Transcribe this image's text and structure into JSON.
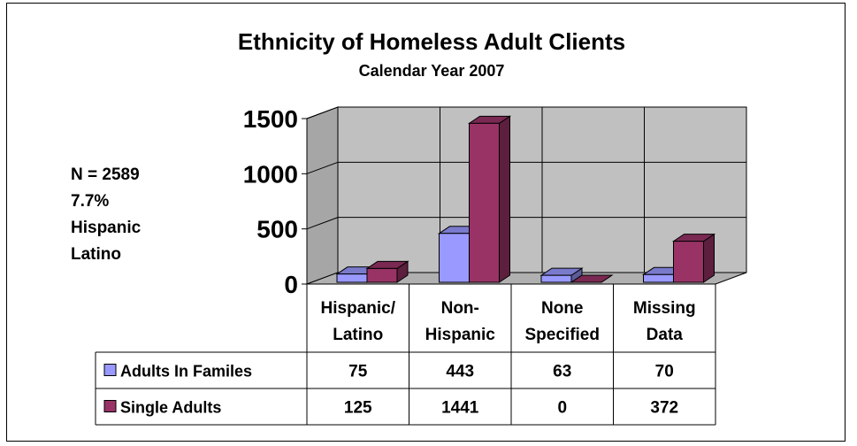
{
  "chart_data": {
    "type": "bar",
    "title": "Ethnicity of Homeless Adult Clients",
    "subtitle": "Calendar Year 2007",
    "categories": [
      [
        "Hispanic/",
        "Latino"
      ],
      [
        "Non-",
        "Hispanic"
      ],
      [
        "None",
        "Specified"
      ],
      [
        "Missing",
        "Data"
      ]
    ],
    "series": [
      {
        "name": "Adults In Familes",
        "values": [
          75,
          443,
          63,
          70
        ],
        "color": "#9999ff",
        "side_color": "#5c5c99",
        "top_color": "#7a7acc"
      },
      {
        "name": "Single Adults",
        "values": [
          125,
          1441,
          0,
          372
        ],
        "color": "#993366",
        "side_color": "#5c1f3d",
        "top_color": "#7a2952"
      }
    ],
    "y_ticks": [
      0,
      500,
      1000,
      1500
    ],
    "ylim": [
      0,
      1500
    ],
    "grid": true,
    "legend": "data-table",
    "wall_color": "#c0c0c0",
    "annotation": [
      "N = 2589",
      "7.7%",
      "Hispanic",
      "Latino"
    ]
  }
}
